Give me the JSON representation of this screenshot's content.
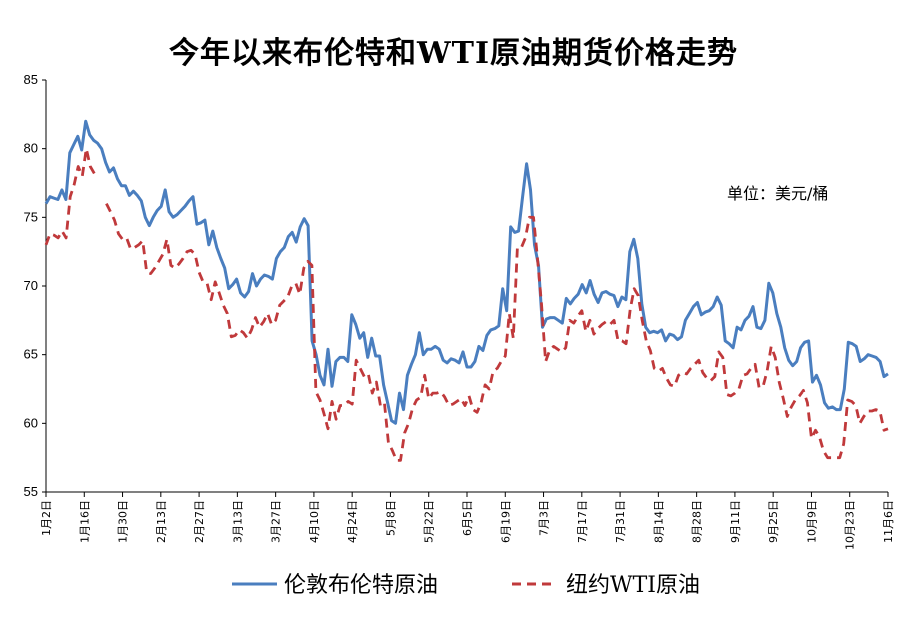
{
  "chart_data": {
    "type": "line",
    "title": "今年以来布伦特和WTI原油期货价格走势",
    "unit": "单位：美元/桶",
    "ylim": [
      55,
      85
    ],
    "yticks": [
      55,
      60,
      65,
      70,
      75,
      80,
      85
    ],
    "xticks": [
      "1月2日",
      "1月16日",
      "1月30日",
      "2月13日",
      "2月27日",
      "3月13日",
      "3月27日",
      "4月10日",
      "4月24日",
      "5月8日",
      "5月22日",
      "6月5日",
      "6月19日",
      "7月3日",
      "7月17日",
      "7月31日",
      "8月14日",
      "8月28日",
      "9月11日",
      "9月25日",
      "10月9日",
      "10月23日",
      "11月6日"
    ],
    "legend": "bottom",
    "grid": false,
    "series": [
      {
        "name": "伦敦布伦特原油",
        "color": "#4a7ebf",
        "style": "solid",
        "values": [
          76.0,
          76.5,
          76.4,
          76.3,
          77.0,
          76.3,
          79.7,
          80.3,
          80.9,
          79.9,
          82.0,
          81.0,
          80.6,
          80.4,
          80.0,
          79.0,
          78.3,
          78.6,
          77.8,
          77.3,
          77.3,
          76.6,
          76.9,
          76.6,
          76.2,
          75.0,
          74.4,
          75.0,
          75.5,
          75.8,
          77.0,
          75.4,
          75.0,
          75.2,
          75.5,
          75.8,
          76.2,
          76.5,
          74.5,
          74.6,
          74.8,
          73.0,
          74.0,
          72.8,
          72.0,
          71.3,
          69.8,
          70.1,
          70.5,
          69.5,
          69.2,
          69.6,
          70.9,
          70.0,
          70.5,
          70.8,
          70.7,
          70.5,
          72.0,
          72.5,
          72.8,
          73.6,
          73.9,
          73.2,
          74.3,
          74.9,
          74.4,
          66.0,
          65.0,
          63.5,
          62.8,
          65.4,
          62.7,
          64.5,
          64.8,
          64.8,
          64.5,
          67.9,
          67.2,
          66.2,
          66.6,
          64.8,
          66.2,
          64.9,
          64.9,
          62.8,
          61.5,
          60.2,
          60.0,
          62.2,
          61.0,
          63.5,
          64.3,
          65.0,
          66.6,
          65.0,
          65.4,
          65.4,
          65.6,
          65.4,
          64.6,
          64.4,
          64.7,
          64.6,
          64.4,
          65.2,
          64.1,
          64.1,
          64.5,
          65.6,
          65.3,
          66.4,
          66.8,
          66.9,
          67.1,
          69.8,
          68.2,
          74.3,
          73.9,
          74.0,
          76.5,
          78.9,
          77.0,
          73.0,
          71.5,
          67.0,
          67.6,
          67.7,
          67.7,
          67.5,
          67.3,
          69.1,
          68.7,
          69.1,
          69.4,
          70.1,
          69.5,
          70.4,
          69.4,
          68.8,
          69.5,
          69.6,
          69.4,
          69.3,
          68.5,
          69.2,
          69.0,
          72.5,
          73.4,
          72.0,
          68.7,
          67.0,
          66.6,
          66.7,
          66.6,
          66.8,
          66.0,
          66.5,
          66.4,
          66.1,
          66.3,
          67.5,
          68.0,
          68.5,
          68.8,
          67.9,
          68.1,
          68.2,
          68.5,
          69.2,
          68.6,
          66.0,
          65.8,
          65.5,
          67.0,
          66.8,
          67.5,
          67.8,
          68.5,
          67.0,
          66.9,
          67.5,
          70.2,
          69.5,
          68.0,
          67.0,
          65.5,
          64.6,
          64.2,
          64.5,
          65.5,
          65.9,
          66.0,
          63.0,
          63.5,
          62.8,
          61.5,
          61.1,
          61.2,
          61.0,
          61.0,
          62.5,
          65.9,
          65.8,
          65.6,
          64.5,
          64.7,
          65.0,
          64.9,
          64.8,
          64.5,
          63.4,
          63.6
        ]
      },
      {
        "name": "纽约WTI原油",
        "color": "#c0393b",
        "style": "dashed",
        "values": [
          73.0,
          73.8,
          73.7,
          73.5,
          74.0,
          73.5,
          76.5,
          77.4,
          78.7,
          78.0,
          80.0,
          78.7,
          78.2,
          null,
          null,
          76.0,
          75.4,
          74.8,
          73.8,
          73.4,
          73.5,
          72.7,
          72.8,
          73.0,
          73.3,
          71.0,
          70.9,
          71.3,
          71.8,
          72.3,
          73.4,
          71.5,
          71.3,
          71.6,
          72.0,
          72.5,
          72.6,
          72.3,
          71.0,
          70.3,
          70.2,
          69.0,
          70.3,
          69.5,
          68.6,
          68.0,
          66.3,
          66.4,
          66.8,
          66.6,
          66.2,
          66.8,
          67.7,
          67.0,
          67.4,
          68.0,
          67.2,
          67.5,
          68.6,
          68.9,
          69.2,
          70.0,
          70.2,
          69.4,
          71.3,
          71.8,
          71.5,
          62.3,
          61.7,
          60.7,
          59.6,
          61.6,
          60.3,
          61.3,
          61.3,
          61.6,
          61.4,
          64.6,
          64.0,
          63.4,
          63.6,
          62.2,
          63.0,
          61.3,
          61.5,
          58.6,
          58.0,
          57.3,
          57.3,
          59.3,
          60.0,
          61.1,
          61.7,
          61.9,
          63.5,
          61.8,
          62.2,
          62.2,
          62.3,
          61.9,
          61.3,
          61.4,
          61.6,
          61.8,
          61.3,
          62.0,
          61.0,
          60.8,
          61.5,
          62.8,
          62.5,
          63.8,
          64.0,
          64.5,
          64.9,
          68.0,
          66.2,
          72.8,
          72.8,
          73.5,
          75.0,
          75.0,
          72.0,
          68.7,
          64.5,
          65.3,
          65.6,
          65.4,
          65.2,
          65.5,
          67.5,
          67.3,
          67.8,
          68.2,
          66.7,
          67.5,
          66.5,
          66.9,
          67.2,
          67.4,
          67.2,
          67.5,
          66.0,
          66.0,
          65.8,
          68.3,
          69.8,
          69.3,
          67.5,
          66.0,
          65.3,
          64.0,
          63.8,
          64.0,
          63.3,
          62.8,
          62.7,
          63.5,
          63.7,
          63.6,
          64.0,
          64.3,
          64.6,
          63.7,
          63.3,
          63.1,
          63.4,
          65.2,
          64.8,
          62.1,
          62.0,
          62.2,
          62.5,
          63.5,
          63.6,
          64.0,
          64.3,
          62.6,
          62.7,
          63.8,
          65.6,
          64.8,
          63.0,
          61.8,
          60.5,
          61.2,
          61.7,
          62.0,
          62.4,
          61.5,
          58.9,
          59.5,
          59.0,
          58.0,
          57.5,
          57.5,
          57.5,
          57.5,
          58.5,
          61.7,
          61.6,
          61.3,
          60.0,
          60.5,
          60.9,
          60.9,
          61.0,
          60.9,
          59.5,
          59.6
        ]
      }
    ]
  }
}
